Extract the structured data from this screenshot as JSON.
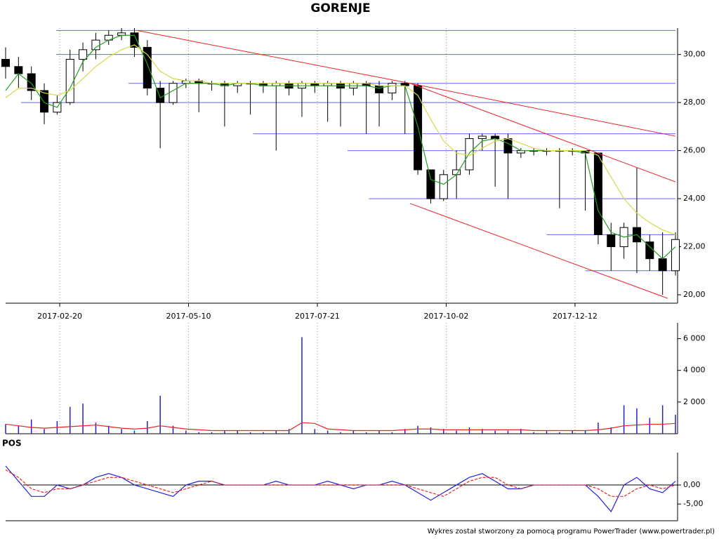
{
  "chart_data": [
    {
      "type": "candlestick",
      "title": "GORENJE",
      "x": [
        0,
        5,
        10,
        15,
        20,
        25,
        30,
        35,
        40,
        45,
        50,
        55,
        60,
        65,
        70,
        75,
        80,
        85,
        90,
        95,
        100,
        105,
        110,
        115,
        120,
        125,
        130,
        135,
        140,
        145,
        150,
        155,
        160,
        165,
        170,
        175,
        180,
        185,
        190,
        195,
        200,
        205,
        210,
        215,
        220,
        225,
        230,
        235,
        240,
        245,
        250,
        255,
        260
      ],
      "open": [
        29.8,
        29.5,
        29.2,
        28.5,
        27.6,
        28.0,
        29.8,
        30.2,
        30.6,
        30.8,
        30.9,
        30.3,
        28.6,
        28.0,
        28.8,
        28.9,
        28.8,
        28.8,
        28.7,
        28.8,
        28.8,
        28.7,
        28.8,
        28.6,
        28.8,
        28.7,
        28.8,
        28.6,
        28.8,
        28.7,
        28.4,
        28.8,
        28.7,
        25.2,
        24.0,
        25.0,
        25.2,
        26.5,
        26.6,
        26.5,
        25.9,
        26.0,
        26.0,
        26.0,
        26.0,
        26.0,
        25.9,
        22.5,
        22.0,
        22.8,
        22.2,
        21.5,
        21.0
      ],
      "high": [
        30.3,
        29.9,
        29.5,
        28.8,
        28.3,
        30.2,
        30.5,
        30.9,
        31.0,
        31.1,
        31.1,
        30.6,
        28.9,
        28.9,
        29.0,
        29.0,
        28.9,
        28.9,
        28.9,
        28.9,
        28.9,
        28.9,
        28.9,
        28.9,
        28.9,
        28.9,
        28.9,
        28.9,
        28.9,
        28.9,
        28.9,
        28.9,
        28.8,
        25.2,
        25.2,
        26.0,
        26.7,
        26.7,
        26.7,
        26.7,
        26.1,
        26.1,
        26.1,
        26.1,
        26.1,
        26.0,
        25.9,
        23.0,
        23.0,
        25.3,
        22.5,
        22.6,
        22.6
      ],
      "low": [
        29.0,
        28.6,
        28.1,
        27.1,
        27.5,
        27.9,
        29.3,
        29.8,
        30.4,
        30.6,
        29.9,
        28.3,
        26.1,
        27.9,
        28.6,
        27.6,
        28.5,
        27.0,
        28.4,
        27.5,
        28.4,
        26.0,
        28.3,
        27.4,
        28.4,
        27.2,
        27.0,
        28.3,
        26.7,
        27.0,
        28.1,
        26.7,
        25.0,
        23.8,
        23.9,
        24.0,
        25.0,
        26.0,
        24.5,
        24.0,
        25.7,
        25.8,
        25.8,
        23.6,
        25.8,
        23.5,
        22.1,
        21.0,
        21.5,
        20.9,
        21.0,
        20.0,
        20.8
      ],
      "close": [
        29.5,
        29.2,
        28.5,
        27.6,
        28.0,
        29.8,
        30.2,
        30.6,
        30.8,
        30.9,
        30.3,
        28.6,
        28.0,
        28.8,
        28.9,
        28.8,
        28.8,
        28.7,
        28.8,
        28.8,
        28.7,
        28.8,
        28.6,
        28.8,
        28.7,
        28.8,
        28.6,
        28.8,
        28.7,
        28.4,
        28.8,
        28.7,
        25.2,
        24.0,
        25.0,
        25.2,
        26.5,
        26.6,
        26.5,
        25.9,
        26.0,
        26.0,
        26.0,
        26.0,
        26.0,
        25.9,
        22.5,
        22.0,
        22.8,
        22.2,
        21.5,
        21.0,
        22.3
      ],
      "candle_color": "#000000",
      "series": [
        {
          "color": "#22a022",
          "values": [
            28.5,
            29.2,
            28.8,
            28.0,
            27.8,
            28.6,
            29.7,
            30.3,
            30.6,
            30.8,
            30.8,
            29.6,
            28.2,
            28.5,
            28.8,
            28.8,
            28.8,
            28.7,
            28.8,
            28.8,
            28.7,
            28.7,
            28.7,
            28.7,
            28.7,
            28.7,
            28.7,
            28.7,
            28.7,
            28.6,
            28.7,
            28.7,
            27.0,
            24.8,
            24.6,
            25.0,
            25.9,
            26.4,
            26.5,
            26.3,
            26.0,
            26.0,
            26.0,
            26.0,
            26.0,
            25.9,
            23.5,
            22.6,
            22.4,
            22.5,
            22.0,
            21.5,
            22.0
          ]
        },
        {
          "color": "#d8d84a",
          "values": [
            28.2,
            28.6,
            28.6,
            28.4,
            28.3,
            28.5,
            29.0,
            29.5,
            29.9,
            30.2,
            30.4,
            30.0,
            29.3,
            29.0,
            28.9,
            28.9,
            28.8,
            28.8,
            28.8,
            28.8,
            28.8,
            28.8,
            28.8,
            28.8,
            28.8,
            28.8,
            28.8,
            28.8,
            28.8,
            28.7,
            28.7,
            28.7,
            28.3,
            27.3,
            26.4,
            25.9,
            25.8,
            26.1,
            26.4,
            26.5,
            26.3,
            26.1,
            26.0,
            26.0,
            26.0,
            26.0,
            25.8,
            24.9,
            24.0,
            23.4,
            23.0,
            22.7,
            22.5
          ]
        }
      ],
      "hlines_color": "#6666ff",
      "hlines": [
        {
          "value": 31.0,
          "x": [
            19.6,
            260
          ]
        },
        {
          "value": 30.0,
          "x": [
            19.6,
            260
          ]
        },
        {
          "value": 28.8,
          "x": [
            47.7,
            260
          ]
        },
        {
          "value": 28.0,
          "x": [
            6,
            260
          ]
        },
        {
          "value": 26.7,
          "x": [
            96,
            260
          ]
        },
        {
          "value": 26.0,
          "x": [
            132.7,
            260
          ]
        },
        {
          "value": 24.0,
          "x": [
            141,
            260
          ]
        },
        {
          "value": 22.5,
          "x": [
            210,
            260
          ]
        },
        {
          "value": 21.0,
          "x": [
            225,
            260
          ]
        }
      ],
      "trendlines_color": "#ee2222",
      "trendlines": [
        {
          "x": [
            51,
            157
          ],
          "y": [
            31.0,
            28.8
          ]
        },
        {
          "x": [
            157,
            260
          ],
          "y": [
            28.8,
            26.6
          ]
        },
        {
          "x": [
            157,
            260
          ],
          "y": [
            28.8,
            24.7
          ]
        },
        {
          "x": [
            157,
            257
          ],
          "y": [
            23.8,
            19.85
          ]
        }
      ],
      "xlim": [
        0,
        260
      ],
      "xticks": [
        {
          "value": 21,
          "label": "2017-02-20"
        },
        {
          "value": 71,
          "label": "2017-05-10"
        },
        {
          "value": 121,
          "label": "2017-07-21"
        },
        {
          "value": 171,
          "label": "2017-10-02"
        },
        {
          "value": 221,
          "label": "2017-12-12"
        }
      ],
      "ylim": [
        19.65,
        31.1
      ],
      "yticks": [
        {
          "value": 20,
          "label": "20,00"
        },
        {
          "value": 22,
          "label": "22,00"
        },
        {
          "value": 24,
          "label": "24,00"
        },
        {
          "value": 26,
          "label": "26,00"
        },
        {
          "value": 28,
          "label": "28,00"
        },
        {
          "value": 30,
          "label": "30,00"
        }
      ],
      "grid": "x"
    },
    {
      "type": "bar",
      "x": [
        0,
        5,
        10,
        15,
        20,
        25,
        30,
        35,
        40,
        45,
        50,
        55,
        60,
        65,
        70,
        75,
        80,
        85,
        90,
        95,
        100,
        105,
        110,
        115,
        120,
        125,
        130,
        135,
        140,
        145,
        150,
        155,
        160,
        165,
        170,
        175,
        180,
        185,
        190,
        195,
        200,
        205,
        210,
        215,
        220,
        225,
        230,
        235,
        240,
        245,
        250,
        255,
        260
      ],
      "series": [
        {
          "style": "bar",
          "color": "#2222cc",
          "values": [
            600,
            500,
            900,
            300,
            800,
            1700,
            1900,
            700,
            500,
            300,
            200,
            800,
            2400,
            500,
            200,
            100,
            100,
            200,
            200,
            100,
            100,
            200,
            300,
            6100,
            300,
            200,
            100,
            200,
            100,
            200,
            100,
            300,
            500,
            400,
            300,
            200,
            400,
            300,
            200,
            200,
            300,
            100,
            200,
            100,
            200,
            200,
            700,
            400,
            1800,
            1600,
            1000,
            1800,
            1200
          ]
        },
        {
          "style": "line",
          "color": "#ee2222",
          "values": [
            600,
            500,
            400,
            350,
            400,
            450,
            500,
            550,
            450,
            350,
            300,
            350,
            500,
            400,
            300,
            250,
            200,
            200,
            200,
            200,
            200,
            200,
            200,
            700,
            650,
            300,
            250,
            200,
            200,
            200,
            200,
            250,
            300,
            300,
            250,
            250,
            250,
            250,
            250,
            250,
            250,
            200,
            200,
            200,
            200,
            200,
            250,
            350,
            500,
            550,
            600,
            600,
            650
          ]
        }
      ],
      "xlim": [
        0,
        260
      ],
      "ylim": [
        0,
        7000
      ],
      "yticks": [
        {
          "value": 2000,
          "label": "2 000"
        },
        {
          "value": 4000,
          "label": "4 000"
        },
        {
          "value": 6000,
          "label": "6 000"
        }
      ]
    },
    {
      "type": "line",
      "title": "POS",
      "x": [
        0,
        5,
        10,
        15,
        20,
        25,
        30,
        35,
        40,
        45,
        50,
        55,
        60,
        65,
        70,
        75,
        80,
        85,
        90,
        95,
        100,
        105,
        110,
        115,
        120,
        125,
        130,
        135,
        140,
        145,
        150,
        155,
        160,
        165,
        170,
        175,
        180,
        185,
        190,
        195,
        200,
        205,
        210,
        215,
        220,
        225,
        230,
        235,
        240,
        245,
        250,
        255,
        260
      ],
      "series": [
        {
          "color": "#2222dd",
          "dash": false,
          "values": [
            5,
            1,
            -3,
            -3,
            0,
            -1,
            0,
            2,
            3,
            2,
            0,
            -1,
            -2,
            -3,
            0,
            1,
            1,
            0,
            0,
            0,
            0,
            1,
            0,
            0,
            0,
            1,
            0,
            -1,
            0,
            0,
            1,
            0,
            -2,
            -4,
            -2,
            0,
            2,
            3,
            1,
            -1,
            -1,
            0,
            0,
            0,
            0,
            0,
            -3,
            -7,
            0,
            2,
            -1,
            -2,
            1
          ]
        },
        {
          "color": "#ee2222",
          "dash": true,
          "values": [
            4,
            2,
            -1,
            -2,
            -1,
            -1,
            0,
            1,
            2,
            2,
            1,
            0,
            -1,
            -2,
            -1,
            0,
            1,
            0,
            0,
            0,
            0,
            0,
            0,
            0,
            0,
            0,
            0,
            0,
            0,
            0,
            0,
            0,
            -1,
            -2,
            -3,
            -1,
            1,
            2,
            2,
            0,
            -1,
            0,
            0,
            0,
            0,
            0,
            -1,
            -3,
            -3,
            -1,
            0,
            -1,
            0
          ]
        }
      ],
      "xlim": [
        0,
        260
      ],
      "ylim": [
        -9.4,
        8.5
      ],
      "yticks": [
        {
          "value": -5,
          "label": "-5,00"
        },
        {
          "value": 0,
          "label": "0,00"
        }
      ]
    }
  ],
  "footer": "Wykres został stworzony za pomocą programu PowerTrader (www.powertrader.pl)"
}
